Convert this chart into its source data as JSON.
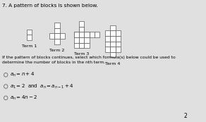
{
  "title": "7. A pattern of blocks is shown below.",
  "question_text": "If the pattern of blocks continues, select which formula(s) below could be used to\ndetermine the number of blocks in the nth term.",
  "term_labels": [
    "Term 1",
    "Term 2",
    "Term 3",
    "Term 4"
  ],
  "block_color": "#ffffff",
  "block_edge": "#555555",
  "bg_color": "#e0e0e0",
  "page_number": "2"
}
